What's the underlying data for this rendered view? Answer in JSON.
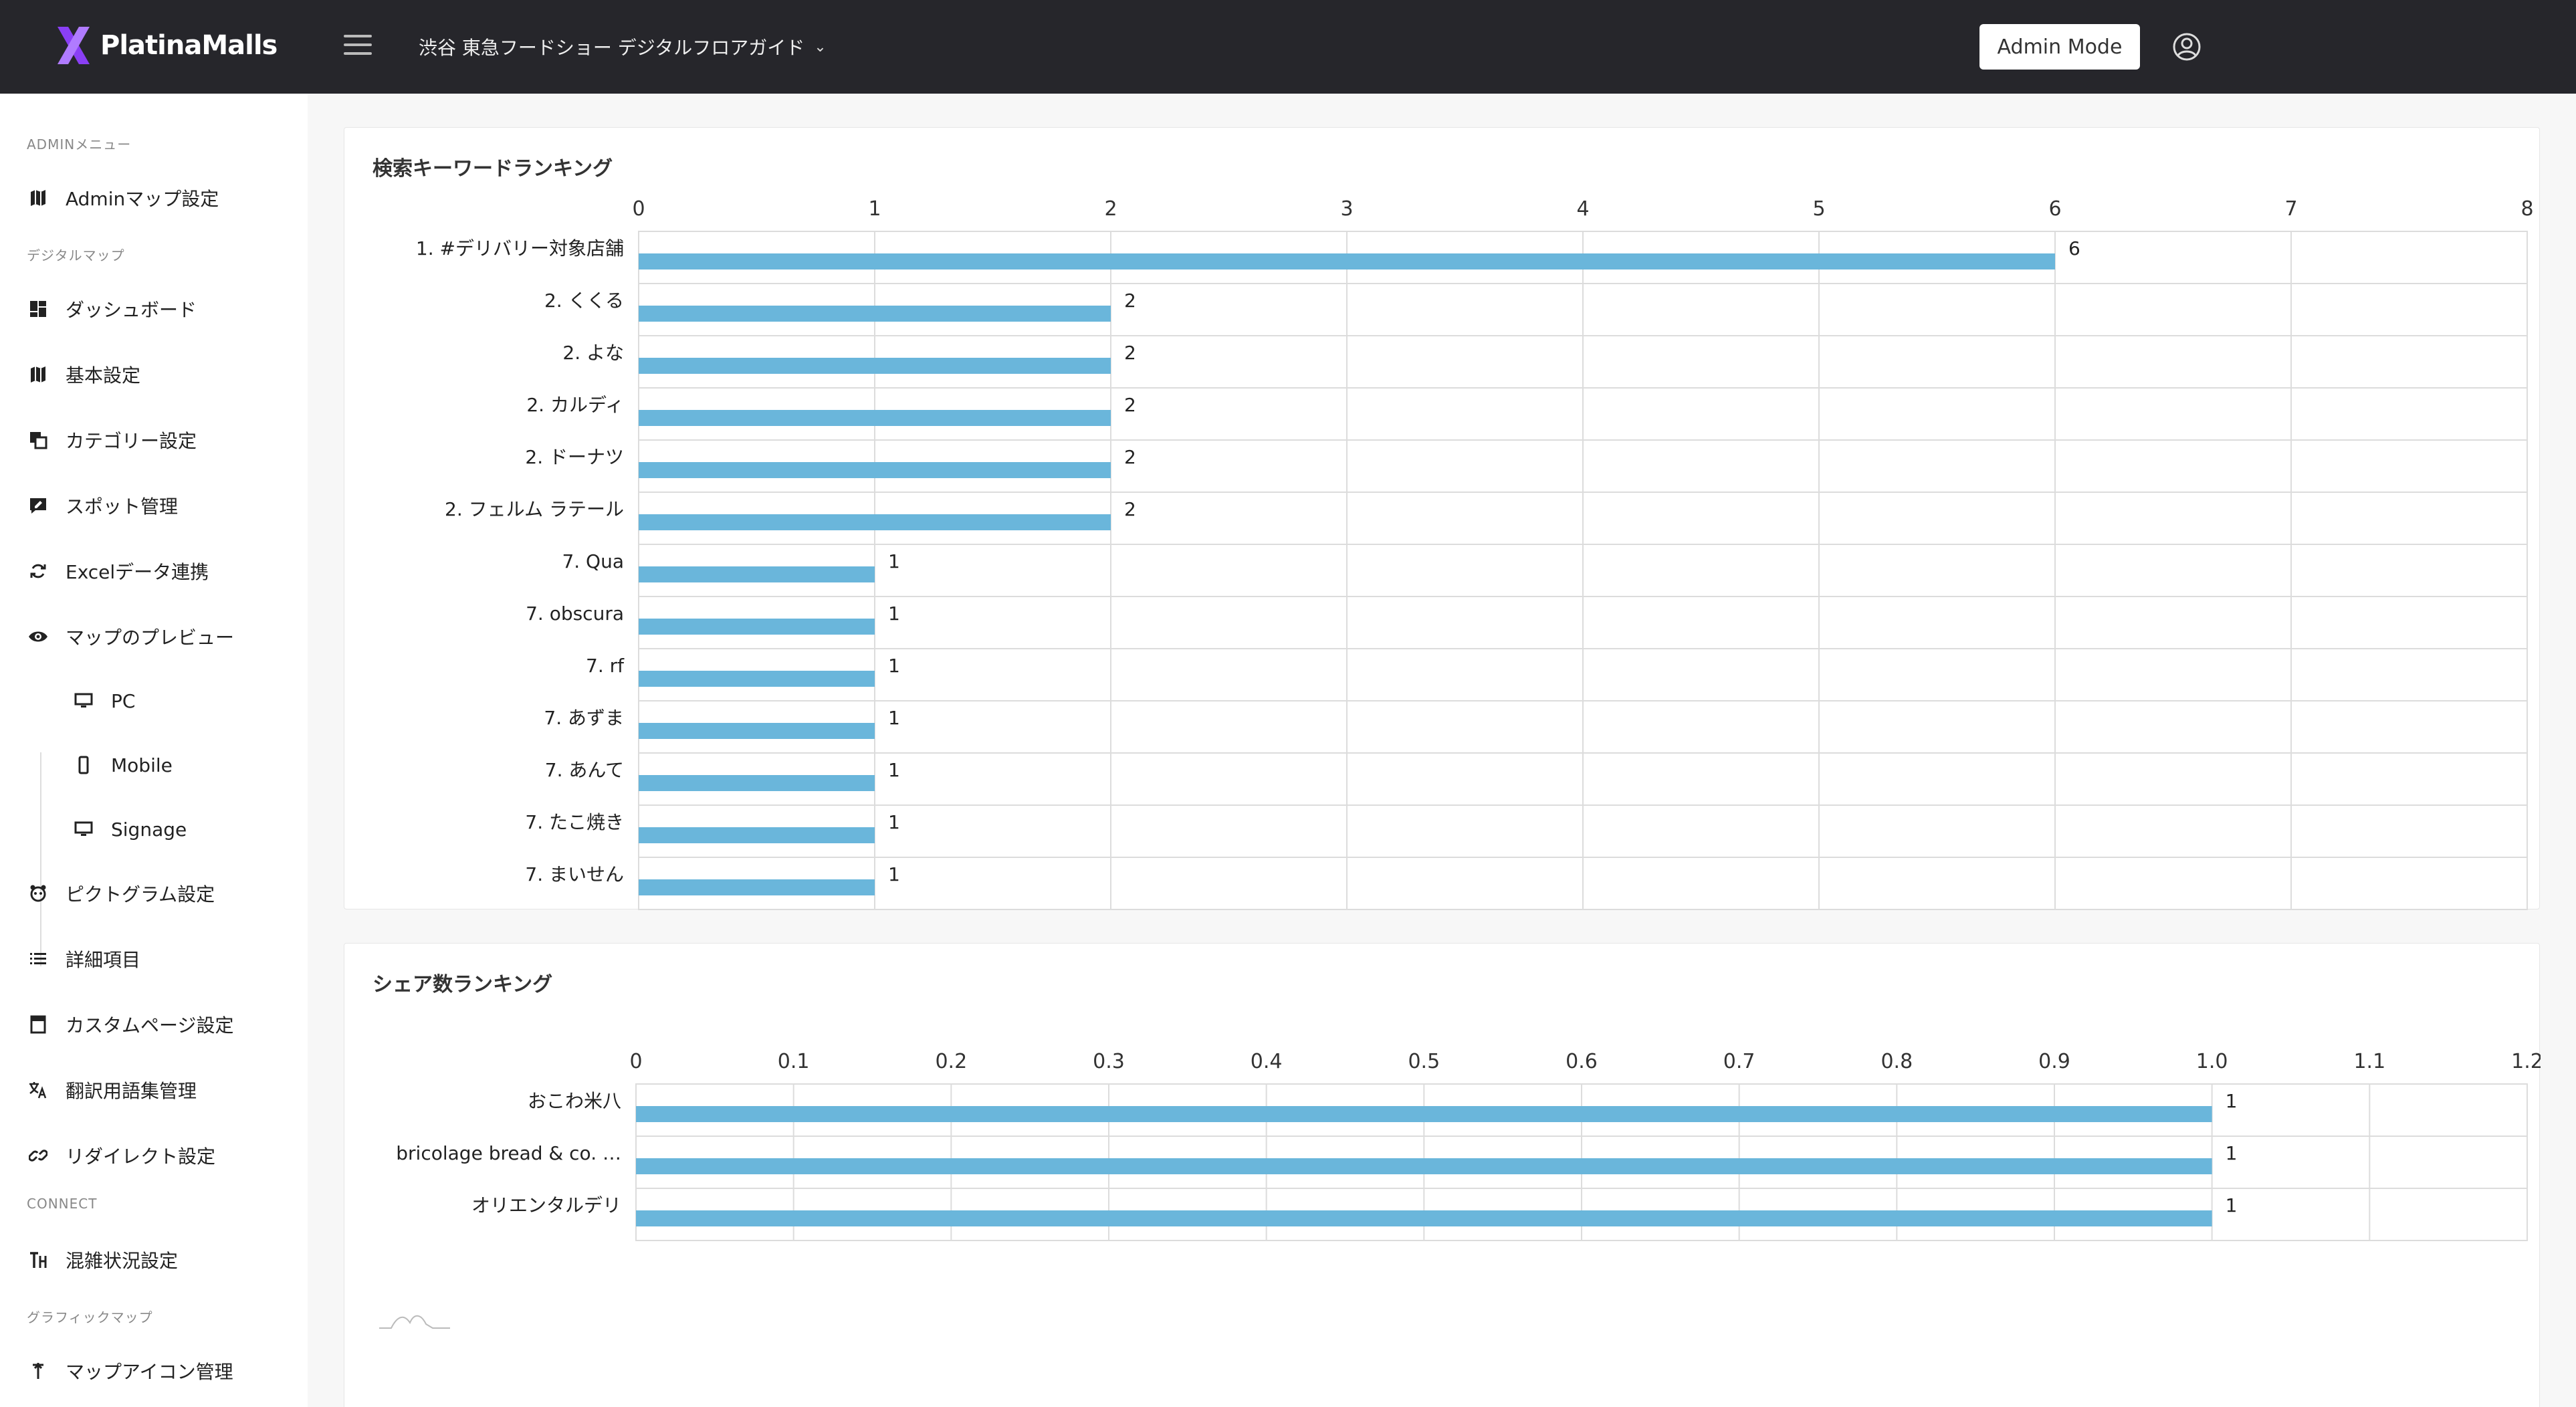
{
  "app": {
    "brand": "PlatinaMalls",
    "venue": "渋谷 東急フードショー デジタルフロアガイド",
    "admin_mode_label": "Admin Mode",
    "accent": "#8a3ff5"
  },
  "sidebar": {
    "sections": [
      {
        "label": "ADMINメニュー"
      },
      {
        "label": "デジタルマップ"
      },
      {
        "label": "CONNECT"
      },
      {
        "label": "グラフィックマップ"
      }
    ],
    "items": [
      {
        "label": "Adminマップ設定",
        "icon": "map-icon"
      },
      {
        "label": "ダッシュボード",
        "icon": "dashboard-icon"
      },
      {
        "label": "基本設定",
        "icon": "map-icon"
      },
      {
        "label": "カテゴリー設定",
        "icon": "layers-icon"
      },
      {
        "label": "スポット管理",
        "icon": "spot-edit-icon"
      },
      {
        "label": "Excelデータ連携",
        "icon": "sync-icon"
      },
      {
        "label": "マップのプレビュー",
        "icon": "eye-icon"
      },
      {
        "label": "PC",
        "icon": "monitor-icon"
      },
      {
        "label": "Mobile",
        "icon": "mobile-icon"
      },
      {
        "label": "Signage",
        "icon": "monitor-icon"
      },
      {
        "label": "ピクトグラム設定",
        "icon": "pictogram-icon"
      },
      {
        "label": "詳細項目",
        "icon": "list-icon"
      },
      {
        "label": "カスタムページ設定",
        "icon": "page-icon"
      },
      {
        "label": "翻訳用語集管理",
        "icon": "translate-icon"
      },
      {
        "label": "リダイレクト設定",
        "icon": "link-icon"
      },
      {
        "label": "混雑状況設定",
        "icon": "congestion-icon"
      },
      {
        "label": "マップアイコン管理",
        "icon": "pin-icon"
      }
    ]
  },
  "cards": {
    "keyword_title": "検索キーワードランキング",
    "share_title": "シェア数ランキング"
  },
  "chart_data": [
    {
      "type": "bar",
      "orientation": "horizontal",
      "title": "検索キーワードランキング",
      "categories": [
        "1. #デリバリー対象店舗",
        "2. くくる",
        "2. よな",
        "2. カルディ",
        "2. ドーナツ",
        "2. フェルム ラテール",
        "7. Qua",
        "7. obscura",
        "7. rf",
        "7. あずま",
        "7. あんて",
        "7. たこ焼き",
        "7. まいせん"
      ],
      "values": [
        6,
        2,
        2,
        2,
        2,
        2,
        1,
        1,
        1,
        1,
        1,
        1,
        1
      ],
      "xlim": [
        0,
        8
      ],
      "ticks": [
        "0",
        "1",
        "2",
        "3",
        "4",
        "5",
        "6",
        "7",
        "8"
      ],
      "color": "#6ab6db",
      "grid": true
    },
    {
      "type": "bar",
      "orientation": "horizontal",
      "title": "シェア数ランキング",
      "categories": [
        "おこわ米八",
        "bricolage bread & co. …",
        "オリエンタルデリ"
      ],
      "values": [
        1,
        1,
        1
      ],
      "xlim": [
        0,
        1.2
      ],
      "ticks": [
        "0",
        "0.1",
        "0.2",
        "0.3",
        "0.4",
        "0.5",
        "0.6",
        "0.7",
        "0.8",
        "0.9",
        "1.0",
        "1.1",
        "1.2"
      ],
      "color": "#6ab6db",
      "grid": true
    }
  ]
}
